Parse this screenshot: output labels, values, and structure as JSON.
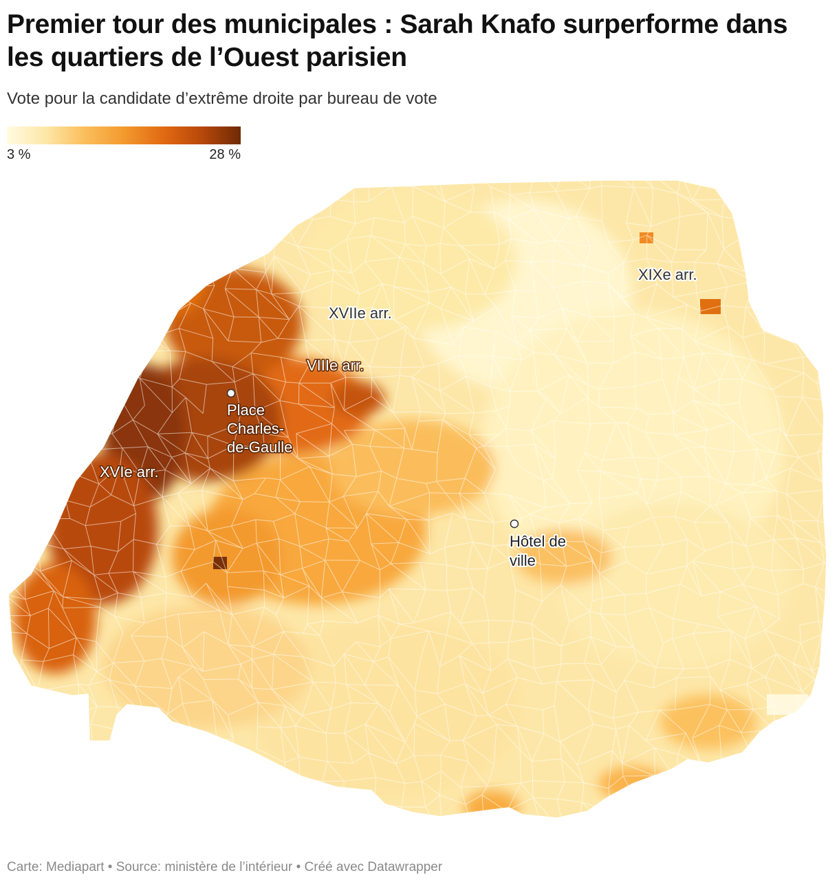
{
  "header": {
    "title": "Premier tour des municipales : Sarah Knafo surperforme dans les quartiers de l’Ouest parisien",
    "subtitle": "Vote pour la candidate d’extrême droite par bureau de vote"
  },
  "legend": {
    "min_label": "3 %",
    "max_label": "28 %",
    "min_value": 3,
    "max_value": 28,
    "colors": [
      "#fffbe0",
      "#fde7a8",
      "#fbbe5c",
      "#f39a2e",
      "#e26a12",
      "#b8480a",
      "#6e2a05"
    ]
  },
  "map": {
    "arrondissement_labels": [
      "XVIIe arr.",
      "XIXe arr.",
      "VIIIe arr.",
      "XVIe arr."
    ],
    "landmarks": [
      {
        "name": "Place Charles-de-Gaulle",
        "lines": [
          "Place",
          "Charles-",
          "de-Gaulle"
        ]
      },
      {
        "name": "Hôtel de ville",
        "lines": [
          "Hôtel de",
          "ville"
        ]
      }
    ]
  },
  "footer": {
    "credit": "Carte: Mediapart • Source: ministère de l’intérieur • Créé avec Datawrapper"
  }
}
